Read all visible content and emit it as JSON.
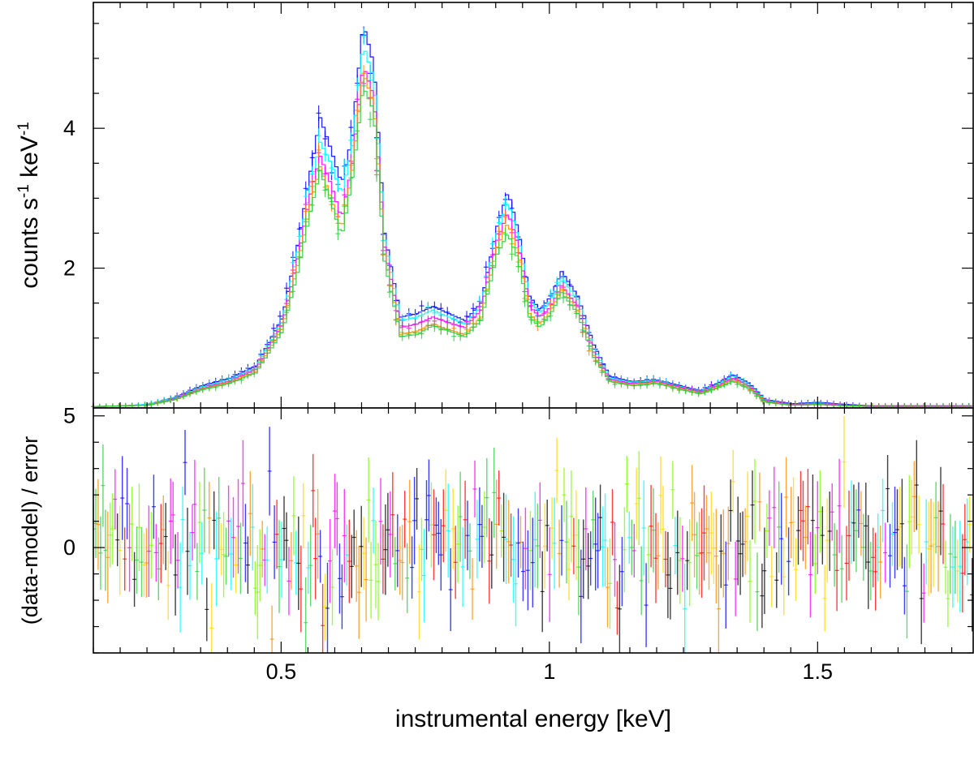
{
  "chart_data": [
    {
      "type": "line",
      "panel": "spectrum",
      "title": "",
      "xlabel": "",
      "ylabel": "counts s-1 keV-1",
      "ylabel_parts": {
        "base": "counts  s",
        "exp1": "-1",
        "mid": " keV",
        "exp2": "-1"
      },
      "xlim": [
        0.15,
        1.79
      ],
      "ylim": [
        0,
        5.8
      ],
      "xscale": "linear",
      "yticks": [
        2,
        4
      ],
      "ytick_labels": [
        "2",
        "4"
      ],
      "grid": false,
      "legend": "none",
      "x": [
        0.15,
        0.2,
        0.25,
        0.3,
        0.35,
        0.4,
        0.45,
        0.5,
        0.53,
        0.55,
        0.57,
        0.59,
        0.61,
        0.63,
        0.65,
        0.67,
        0.69,
        0.72,
        0.75,
        0.78,
        0.81,
        0.84,
        0.87,
        0.9,
        0.92,
        0.94,
        0.96,
        0.98,
        1.0,
        1.02,
        1.05,
        1.08,
        1.11,
        1.15,
        1.2,
        1.25,
        1.28,
        1.31,
        1.34,
        1.37,
        1.4,
        1.45,
        1.5,
        1.55,
        1.6,
        1.7,
        1.79
      ],
      "series": [
        {
          "color": "#0000ff",
          "values": [
            0.02,
            0.03,
            0.05,
            0.15,
            0.32,
            0.42,
            0.6,
            1.3,
            2.4,
            3.3,
            4.15,
            3.7,
            3.2,
            3.9,
            5.5,
            4.9,
            2.5,
            1.3,
            1.35,
            1.45,
            1.35,
            1.25,
            1.5,
            2.6,
            3.1,
            2.5,
            1.6,
            1.4,
            1.6,
            1.95,
            1.6,
            0.9,
            0.45,
            0.38,
            0.4,
            0.3,
            0.25,
            0.35,
            0.48,
            0.35,
            0.12,
            0.06,
            0.08,
            0.05,
            0.03,
            0.03,
            0.03
          ]
        },
        {
          "color": "#00ffff",
          "values": [
            0.02,
            0.03,
            0.05,
            0.14,
            0.3,
            0.4,
            0.57,
            1.25,
            2.3,
            3.1,
            3.8,
            3.5,
            3.05,
            3.75,
            5.2,
            4.7,
            2.4,
            1.25,
            1.3,
            1.4,
            1.3,
            1.2,
            1.45,
            2.5,
            2.95,
            2.4,
            1.55,
            1.35,
            1.55,
            1.85,
            1.55,
            0.85,
            0.43,
            0.37,
            0.39,
            0.29,
            0.24,
            0.33,
            0.46,
            0.33,
            0.11,
            0.05,
            0.07,
            0.04,
            0.03,
            0.03,
            0.03
          ]
        },
        {
          "color": "#ff00ff",
          "values": [
            0.02,
            0.03,
            0.04,
            0.13,
            0.28,
            0.38,
            0.55,
            1.2,
            2.2,
            3.0,
            3.6,
            3.2,
            2.7,
            3.5,
            4.9,
            4.45,
            2.3,
            1.15,
            1.2,
            1.3,
            1.22,
            1.15,
            1.4,
            2.4,
            2.8,
            2.3,
            1.45,
            1.3,
            1.45,
            1.75,
            1.45,
            0.8,
            0.41,
            0.35,
            0.38,
            0.28,
            0.23,
            0.31,
            0.43,
            0.31,
            0.1,
            0.05,
            0.06,
            0.04,
            0.03,
            0.03,
            0.03
          ]
        },
        {
          "color": "#ff8c00",
          "values": [
            0.02,
            0.03,
            0.04,
            0.12,
            0.27,
            0.36,
            0.52,
            1.15,
            2.1,
            2.85,
            3.45,
            3.0,
            2.55,
            3.4,
            4.8,
            4.35,
            2.2,
            1.05,
            1.1,
            1.2,
            1.12,
            1.05,
            1.3,
            2.3,
            2.65,
            2.2,
            1.35,
            1.2,
            1.4,
            1.7,
            1.4,
            0.75,
            0.39,
            0.33,
            0.36,
            0.26,
            0.21,
            0.29,
            0.4,
            0.29,
            0.09,
            0.04,
            0.05,
            0.03,
            0.02,
            0.02,
            0.02
          ]
        },
        {
          "color": "#2ecc40",
          "values": [
            0.02,
            0.03,
            0.04,
            0.12,
            0.26,
            0.35,
            0.5,
            1.1,
            2.0,
            2.75,
            3.4,
            2.95,
            2.45,
            3.3,
            4.6,
            4.25,
            2.1,
            1.02,
            1.05,
            1.18,
            1.1,
            1.02,
            1.25,
            2.2,
            2.5,
            2.1,
            1.3,
            1.15,
            1.35,
            1.65,
            1.35,
            0.72,
            0.38,
            0.32,
            0.35,
            0.25,
            0.2,
            0.28,
            0.38,
            0.27,
            0.08,
            0.04,
            0.05,
            0.03,
            0.02,
            0.02,
            0.02
          ]
        }
      ]
    },
    {
      "type": "scatter",
      "panel": "residuals",
      "title": "",
      "xlabel": "instrumental energy [keV]",
      "ylabel": "(data-model) / error",
      "xlim": [
        0.15,
        1.79
      ],
      "ylim": [
        -4,
        5.3
      ],
      "xticks": [
        0.5,
        1,
        1.5
      ],
      "xtick_labels": [
        "0.5",
        "1",
        "1.5"
      ],
      "yticks": [
        0,
        5
      ],
      "ytick_labels": [
        "0",
        "5"
      ],
      "grid": false,
      "legend": "none",
      "series_colors": [
        "#0000ff",
        "#00ffff",
        "#ff00ff",
        "#ff0000",
        "#ff8c00",
        "#ffd700",
        "#2ecc40",
        "#7cfc00",
        "#000000"
      ],
      "residual_scatter_sd": 1.5,
      "residual_error_half": 1.4
    }
  ]
}
